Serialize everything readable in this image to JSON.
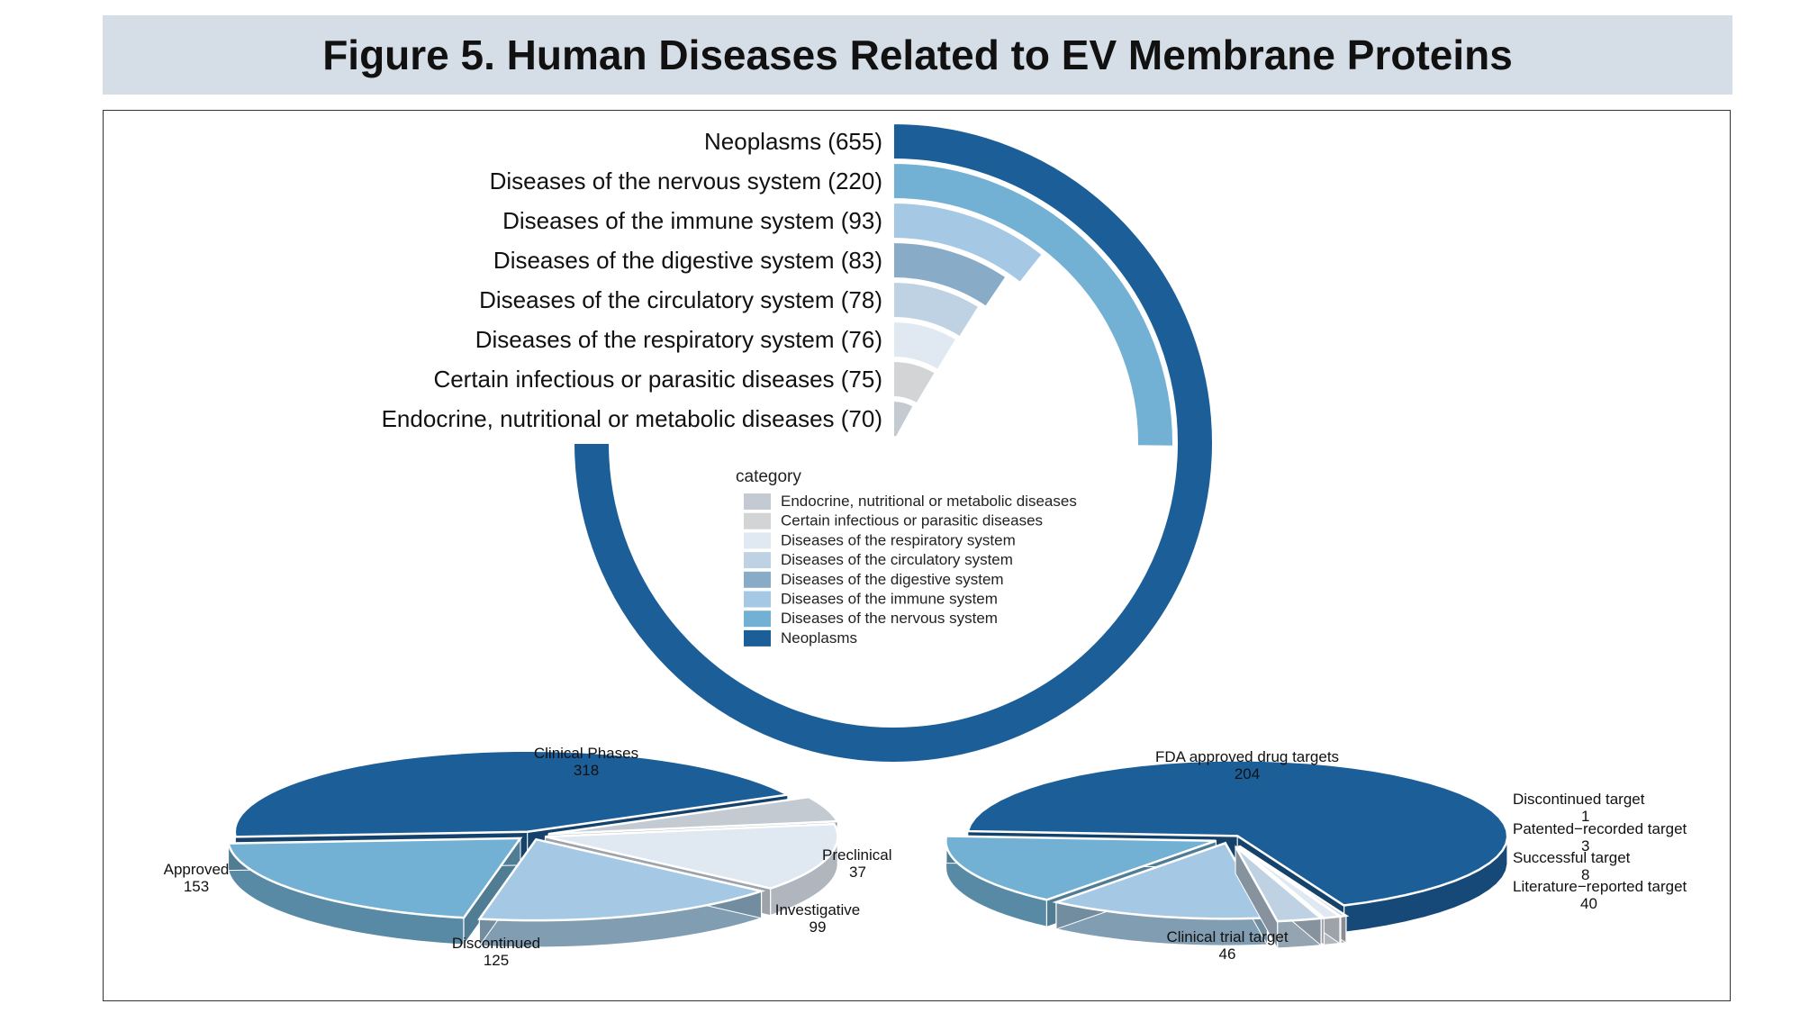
{
  "figure": {
    "title": "Figure 5. Human Diseases Related to EV Membrane Proteins"
  },
  "colors": {
    "neoplasms": "#1c5e98",
    "nervous": "#72b1d4",
    "immune": "#a5c9e4",
    "digestive": "#88abc8",
    "circulatory": "#bfd2e3",
    "respiratory": "#e0e9f2",
    "infectious": "#d2d4d6",
    "endocrine": "#c3cad2"
  },
  "chart_data": [
    {
      "type": "radial-bar",
      "legend_title": "category",
      "legend_placement": "center",
      "categories": [
        {
          "key": "neoplasms",
          "label": "Neoplasms (655)",
          "legend": "Neoplasms",
          "value": 655
        },
        {
          "key": "nervous",
          "label": "Diseases of the nervous system (220)",
          "legend": "Diseases of the nervous system",
          "value": 220
        },
        {
          "key": "immune",
          "label": "Diseases of the immune system (93)",
          "legend": "Diseases of the immune system",
          "value": 93
        },
        {
          "key": "digestive",
          "label": "Diseases of the digestive system (83)",
          "legend": "Diseases of the digestive system",
          "value": 83
        },
        {
          "key": "circulatory",
          "label": "Diseases of the circulatory system (78)",
          "legend": "Diseases of the circulatory system",
          "value": 78
        },
        {
          "key": "respiratory",
          "label": "Diseases of the respiratory system (76)",
          "legend": "Diseases of the respiratory system",
          "value": 76
        },
        {
          "key": "infectious",
          "label": "Certain infectious or parasitic diseases (75)",
          "legend": "Certain infectious or parasitic diseases",
          "value": 75
        },
        {
          "key": "endocrine",
          "label": "Endocrine, nutritional or metabolic diseases (70)",
          "legend": "Endocrine, nutritional or metabolic diseases",
          "value": 70
        }
      ]
    },
    {
      "type": "pie",
      "title": "",
      "slices": [
        {
          "name": "Clinical Phases",
          "value": 318,
          "color": "#1c5e98"
        },
        {
          "name": "Preclinical",
          "value": 37,
          "color": "#c3cad2"
        },
        {
          "name": "Investigative",
          "value": 99,
          "color": "#e0e9f2"
        },
        {
          "name": "Discontinued",
          "value": 125,
          "color": "#a5c9e4"
        },
        {
          "name": "Approved",
          "value": 153,
          "color": "#72b1d4"
        }
      ]
    },
    {
      "type": "pie",
      "title": "",
      "slices": [
        {
          "name": "FDA approved drug targets",
          "value": 204,
          "color": "#1c5e98"
        },
        {
          "name": "Discontinued target",
          "value": 1,
          "color": "#c3cad2"
        },
        {
          "name": "Patented−recorded target",
          "value": 3,
          "color": "#e0e9f2"
        },
        {
          "name": "Successful target",
          "value": 8,
          "color": "#bfd2e3"
        },
        {
          "name": "Literature−reported target",
          "value": 40,
          "color": "#a5c9e4"
        },
        {
          "name": "Clinical trial target",
          "value": 46,
          "color": "#72b1d4"
        }
      ]
    }
  ]
}
